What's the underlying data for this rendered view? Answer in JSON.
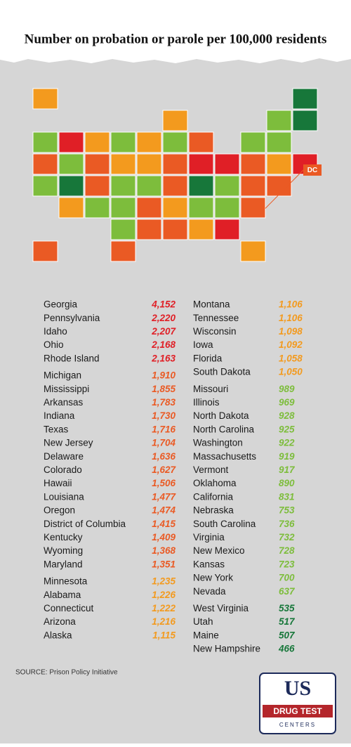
{
  "title": "Number on probation or parole per 100,000 residents",
  "dc_label": "DC",
  "groups": [
    {
      "color": "#e01f26",
      "states": [
        {
          "name": "Georgia",
          "value": {
            "value": 4152,
            "label": "4,152"
          }
        },
        {
          "name": "Pennsylvania",
          "value": {
            "value": 2220,
            "label": "2,220"
          }
        },
        {
          "name": "Idaho",
          "value": {
            "value": 2207,
            "label": "2,207"
          }
        },
        {
          "name": "Ohio",
          "value": {
            "value": 2168,
            "label": "2,168"
          }
        },
        {
          "name": "Rhode Island",
          "value": {
            "value": 2163,
            "label": "2,163"
          }
        }
      ]
    },
    {
      "color": "#ea5a24",
      "states": [
        {
          "name": "Michigan",
          "value": {
            "value": 1910,
            "label": "1,910"
          }
        },
        {
          "name": "Mississippi",
          "value": {
            "value": 1855,
            "label": "1,855"
          }
        },
        {
          "name": "Arkansas",
          "value": {
            "value": 1783,
            "label": "1,783"
          }
        },
        {
          "name": "Indiana",
          "value": {
            "value": 1730,
            "label": "1,730"
          }
        },
        {
          "name": "Texas",
          "value": {
            "value": 1716,
            "label": "1,716"
          }
        },
        {
          "name": "New Jersey",
          "value": {
            "value": 1704,
            "label": "1,704"
          }
        },
        {
          "name": "Delaware",
          "value": {
            "value": 1636,
            "label": "1,636"
          }
        },
        {
          "name": "Colorado",
          "value": {
            "value": 1627,
            "label": "1,627"
          }
        },
        {
          "name": "Hawaii",
          "value": {
            "value": 1506,
            "label": "1,506"
          }
        },
        {
          "name": "Louisiana",
          "value": {
            "value": 1477,
            "label": "1,477"
          }
        },
        {
          "name": "Oregon",
          "value": {
            "value": 1474,
            "label": "1,474"
          }
        },
        {
          "name": "District of Columbia",
          "value": {
            "value": 1415,
            "label": "1,415"
          }
        },
        {
          "name": "Kentucky",
          "value": {
            "value": 1409,
            "label": "1,409"
          }
        },
        {
          "name": "Wyoming",
          "value": {
            "value": 1368,
            "label": "1,368"
          }
        },
        {
          "name": "Maryland",
          "value": {
            "value": 1351,
            "label": "1,351"
          }
        }
      ]
    },
    {
      "color": "#f39a1e",
      "states": [
        {
          "name": "Minnesota",
          "value": {
            "value": 1235,
            "label": "1,235"
          }
        },
        {
          "name": "Alabama",
          "value": {
            "value": 1226,
            "label": "1,226"
          }
        },
        {
          "name": "Connecticut",
          "value": {
            "value": 1222,
            "label": "1,222"
          }
        },
        {
          "name": "Arizona",
          "value": {
            "value": 1216,
            "label": "1,216"
          }
        },
        {
          "name": "Alaska",
          "value": {
            "value": 1115,
            "label": "1,115"
          }
        },
        {
          "name": "Montana",
          "value": {
            "value": 1106,
            "label": "1,106"
          }
        },
        {
          "name": "Tennessee",
          "value": {
            "value": 1106,
            "label": "1,106"
          }
        },
        {
          "name": "Wisconsin",
          "value": {
            "value": 1098,
            "label": "1,098"
          }
        },
        {
          "name": "Iowa",
          "value": {
            "value": 1092,
            "label": "1,092"
          }
        },
        {
          "name": "Florida",
          "value": {
            "value": 1058,
            "label": "1,058"
          }
        },
        {
          "name": "South Dakota",
          "value": {
            "value": 1050,
            "label": "1,050"
          }
        }
      ]
    },
    {
      "color": "#7dbd3c",
      "states": [
        {
          "name": "Missouri",
          "value": 989
        },
        {
          "name": "Illinois",
          "value": 969
        },
        {
          "name": "North Dakota",
          "value": 928
        },
        {
          "name": "North Carolina",
          "value": 925
        },
        {
          "name": "Washington",
          "value": 922
        },
        {
          "name": "Massachusetts",
          "value": 919
        },
        {
          "name": "Vermont",
          "value": 917
        },
        {
          "name": "Oklahoma",
          "value": 890
        },
        {
          "name": "California",
          "value": 831
        },
        {
          "name": "Nebraska",
          "value": 753
        },
        {
          "name": "South Carolina",
          "value": 736
        },
        {
          "name": "Virginia",
          "value": 732
        },
        {
          "name": "New Mexico",
          "value": 728
        },
        {
          "name": "Kansas",
          "value": 723
        },
        {
          "name": "New York",
          "value": 700
        },
        {
          "name": "Nevada",
          "value": 637
        }
      ]
    },
    {
      "color": "#17773a",
      "states": [
        {
          "name": "West Virginia",
          "value": 535
        },
        {
          "name": "Utah",
          "value": 517
        },
        {
          "name": "Maine",
          "value": 507
        },
        {
          "name": "New Hampshire",
          "value": 466
        }
      ]
    }
  ],
  "source": "SOURCE: Prison Policy Initiative",
  "logo": {
    "main": "US",
    "line1": "DRUG TEST",
    "line2": "CENTERS"
  }
}
